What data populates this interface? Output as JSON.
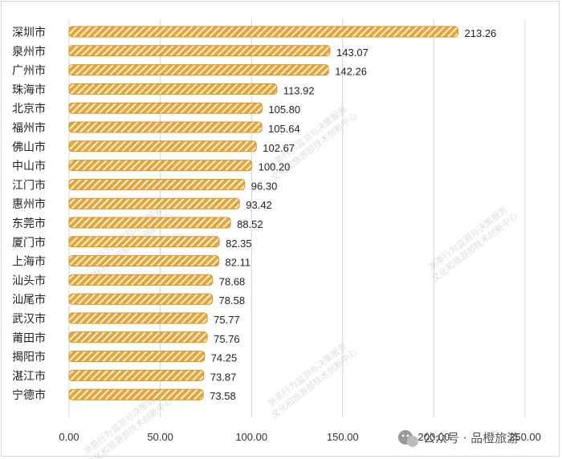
{
  "chart_data": {
    "type": "bar",
    "orientation": "horizontal",
    "categories": [
      "深圳市",
      "泉州市",
      "广州市",
      "珠海市",
      "北京市",
      "福州市",
      "佛山市",
      "中山市",
      "江门市",
      "惠州市",
      "东莞市",
      "厦门市",
      "上海市",
      "汕头市",
      "汕尾市",
      "武汉市",
      "莆田市",
      "揭阳市",
      "湛江市",
      "宁德市"
    ],
    "values": [
      213.26,
      143.07,
      142.26,
      113.92,
      105.8,
      105.64,
      102.67,
      100.2,
      96.3,
      93.42,
      88.52,
      82.35,
      82.11,
      78.68,
      78.58,
      75.77,
      75.76,
      74.25,
      73.87,
      73.58
    ],
    "value_labels": [
      "213.26",
      "143.07",
      "142.26",
      "113.92",
      "105.80",
      "105.64",
      "102.67",
      "100.20",
      "96.30",
      "93.42",
      "88.52",
      "82.35",
      "82.11",
      "78.68",
      "78.58",
      "75.77",
      "75.76",
      "74.25",
      "73.87",
      "73.58"
    ],
    "xlim": [
      0,
      250
    ],
    "x_ticks": [
      0,
      50,
      100,
      150,
      200,
      250
    ],
    "x_tick_labels": [
      "0.00",
      "50.00",
      "100.00",
      "150.00",
      "200.00",
      "250.00"
    ],
    "title": "",
    "xlabel": "",
    "ylabel": "",
    "grid": "vertical",
    "legend": "none",
    "bar_color": "#e8a537",
    "bar_pattern": "diagonal-hatch-white"
  },
  "watermark": [
    "浙茶行为监测与决策服务",
    "文化和旅游部技术创新中心"
  ],
  "credit": {
    "icon": "wechat-icon",
    "text": "公众号 · 品橙旅游"
  }
}
